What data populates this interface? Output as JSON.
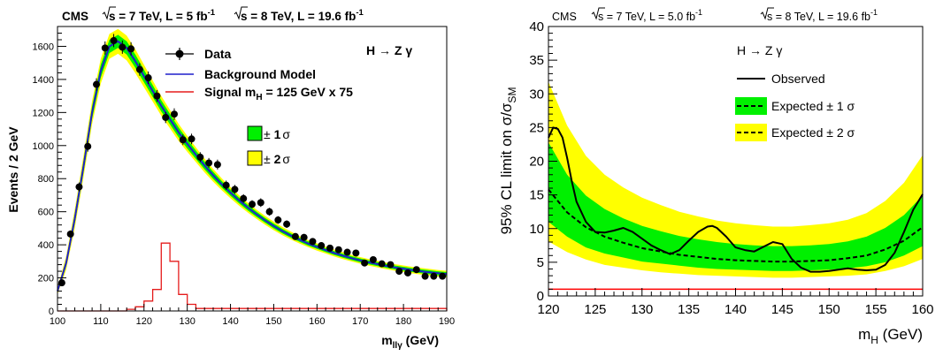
{
  "chart_data": [
    {
      "type": "scatter",
      "header": {
        "experiment": "CMS",
        "run1": {
          "sqrts": "s",
          "energy": " = 7 TeV, L = 5 fb",
          "exp": "-1"
        },
        "run2": {
          "sqrts": "s",
          "energy": " = 8 TeV, L = 19.6 fb",
          "exp": "-1"
        }
      },
      "channel": "H → Z γ",
      "xlabel": {
        "main": "m",
        "sub": "llγ",
        "unit": " (GeV)"
      },
      "ylabel": "Events / 2 GeV",
      "xlim": [
        100,
        190
      ],
      "ylim": [
        0,
        1720
      ],
      "x_ticks": [
        100,
        110,
        120,
        130,
        140,
        150,
        160,
        170,
        180,
        190
      ],
      "y_ticks": [
        0,
        200,
        400,
        600,
        800,
        1000,
        1200,
        1400,
        1600
      ],
      "legend": {
        "placement": "top-right",
        "data": "Data",
        "background": "Background Model",
        "signal": {
          "main": "Signal m",
          "sub": "H",
          "rest": " = 125 GeV x 75"
        },
        "band1": {
          "pm": "± ",
          "n": "1",
          "sym": "σ"
        },
        "band2": {
          "pm": "± ",
          "n": "2",
          "sym": "σ"
        }
      },
      "colors": {
        "data": "#000000",
        "background": "#1f1fcc",
        "signal": "#e51c1c",
        "band1": "#00f000",
        "band2": "#ffff00"
      },
      "data_points": {
        "x": [
          101,
          103,
          105,
          107,
          109,
          111,
          113,
          115,
          117,
          119,
          121,
          123,
          125,
          127,
          129,
          131,
          133,
          135,
          137,
          139,
          141,
          143,
          145,
          147,
          149,
          151,
          153,
          155,
          157,
          159,
          161,
          163,
          165,
          167,
          169,
          171,
          173,
          175,
          177,
          179,
          181,
          183,
          185,
          187,
          189
        ],
        "y": [
          170,
          465,
          750,
          995,
          1370,
          1590,
          1635,
          1595,
          1585,
          1460,
          1410,
          1300,
          1170,
          1190,
          1035,
          1040,
          930,
          895,
          885,
          760,
          735,
          680,
          645,
          655,
          600,
          550,
          525,
          450,
          445,
          420,
          395,
          380,
          370,
          355,
          350,
          290,
          310,
          285,
          280,
          240,
          230,
          250,
          210,
          210,
          210
        ],
        "err": [
          13,
          22,
          27,
          32,
          37,
          40,
          40,
          40,
          40,
          38,
          38,
          36,
          34,
          35,
          32,
          32,
          30,
          30,
          30,
          28,
          27,
          26,
          25,
          26,
          24,
          23,
          23,
          21,
          21,
          20,
          20,
          19,
          19,
          19,
          19,
          17,
          18,
          17,
          17,
          15,
          15,
          16,
          14,
          14,
          14
        ]
      },
      "background_model": {
        "x": [
          100,
          102,
          104,
          106,
          108,
          110,
          112,
          114,
          116,
          118,
          120,
          122,
          124,
          126,
          128,
          130,
          132,
          134,
          136,
          138,
          140,
          142,
          144,
          146,
          148,
          150,
          152,
          154,
          156,
          158,
          160,
          162,
          164,
          166,
          168,
          170,
          172,
          174,
          176,
          178,
          180,
          182,
          184,
          186,
          188,
          190
        ],
        "y": [
          120,
          290,
          560,
          870,
          1200,
          1450,
          1600,
          1630,
          1590,
          1510,
          1420,
          1330,
          1240,
          1160,
          1080,
          1010,
          945,
          880,
          820,
          765,
          715,
          668,
          625,
          585,
          548,
          514,
          483,
          455,
          430,
          407,
          387,
          368,
          350,
          334,
          319,
          306,
          294,
          283,
          272,
          263,
          255,
          247,
          240,
          234,
          228,
          223
        ],
        "band1": [
          10,
          20,
          30,
          35,
          38,
          40,
          40,
          40,
          40,
          40,
          38,
          36,
          34,
          32,
          30,
          28,
          26,
          24,
          22,
          20,
          19,
          18,
          17,
          16,
          15,
          15,
          14,
          14,
          13,
          13,
          12,
          12,
          12,
          12,
          12,
          12,
          12,
          12,
          12,
          12,
          12,
          12,
          12,
          12,
          12,
          12
        ],
        "band2": [
          20,
          40,
          55,
          65,
          70,
          75,
          75,
          75,
          75,
          72,
          68,
          64,
          60,
          56,
          52,
          48,
          45,
          42,
          39,
          36,
          34,
          32,
          30,
          28,
          27,
          26,
          25,
          24,
          23,
          22,
          22,
          21,
          21,
          21,
          20,
          20,
          20,
          20,
          20,
          20,
          20,
          20,
          20,
          20,
          20,
          20
        ]
      },
      "signal": {
        "bin_edges": [
          100,
          116,
          118,
          120,
          122,
          124,
          126,
          128,
          130,
          132,
          190
        ],
        "y": [
          0,
          10,
          25,
          60,
          130,
          410,
          300,
          100,
          40,
          15,
          0
        ]
      }
    },
    {
      "type": "line",
      "header": {
        "experiment": "CMS",
        "run1": {
          "sqrts": "s",
          "energy": " = 7 TeV, L = 5.0 fb",
          "exp": "-1"
        },
        "run2": {
          "sqrts": "s",
          "energy": " = 8 TeV, L = 19.6 fb",
          "exp": "-1"
        }
      },
      "channel": "H → Z γ",
      "xlabel": {
        "main": "m",
        "sub": "H",
        "unit": " (GeV)"
      },
      "ylabel": {
        "main": "95% CL limit on σ/σ",
        "sub": "SM"
      },
      "xlim": [
        120,
        160
      ],
      "ylim": [
        0,
        40
      ],
      "x_ticks": [
        120,
        125,
        130,
        135,
        140,
        145,
        150,
        155,
        160
      ],
      "y_ticks": [
        0,
        5,
        10,
        15,
        20,
        25,
        30,
        35,
        40
      ],
      "legend": {
        "placement": "top-center",
        "observed": "Observed",
        "expected1": "Expected ± 1 σ",
        "expected2": "Expected ± 2 σ"
      },
      "colors": {
        "observed": "#000000",
        "band1": "#00f000",
        "band2": "#ffff00",
        "unity": "#ff0000"
      },
      "expected": {
        "x": [
          120,
          122,
          124,
          126,
          128,
          130,
          132,
          134,
          136,
          138,
          140,
          142,
          144,
          146,
          148,
          150,
          152,
          154,
          156,
          158,
          160
        ],
        "median": [
          15.8,
          12.4,
          10.2,
          8.8,
          7.9,
          7.1,
          6.6,
          6.1,
          5.8,
          5.5,
          5.3,
          5.2,
          5.1,
          5.1,
          5.2,
          5.3,
          5.6,
          6.0,
          6.9,
          8.2,
          10.2
        ],
        "one_sigma_low": [
          11.0,
          8.8,
          7.2,
          6.3,
          5.7,
          5.1,
          4.8,
          4.5,
          4.2,
          4.0,
          3.9,
          3.8,
          3.7,
          3.7,
          3.8,
          3.9,
          4.1,
          4.4,
          5.0,
          6.0,
          7.4
        ],
        "one_sigma_high": [
          22.8,
          18.0,
          14.9,
          12.9,
          11.5,
          10.4,
          9.6,
          8.9,
          8.4,
          8.0,
          7.7,
          7.5,
          7.4,
          7.4,
          7.5,
          7.7,
          8.1,
          8.8,
          10.1,
          12.0,
          14.9
        ],
        "two_sigma_low": [
          8.1,
          6.5,
          5.4,
          4.6,
          4.2,
          3.8,
          3.5,
          3.3,
          3.1,
          3.0,
          2.9,
          2.8,
          2.7,
          2.7,
          2.8,
          2.9,
          3.0,
          3.2,
          3.7,
          4.4,
          5.5
        ],
        "two_sigma_high": [
          31.8,
          25.3,
          20.8,
          18.0,
          16.1,
          14.6,
          13.5,
          12.5,
          11.8,
          11.2,
          10.8,
          10.5,
          10.3,
          10.3,
          10.5,
          10.8,
          11.3,
          12.3,
          14.1,
          16.8,
          20.9
        ]
      },
      "observed": {
        "x": [
          120,
          120.5,
          121,
          121.5,
          122,
          122.5,
          123,
          124,
          125,
          126,
          127,
          128,
          129,
          130,
          131,
          132,
          133,
          134,
          135,
          136,
          137,
          137.5,
          138,
          139,
          140,
          141,
          142,
          143,
          144,
          145,
          146,
          147,
          148,
          149,
          150,
          151,
          152,
          153,
          154,
          155,
          156,
          157,
          158,
          159,
          160
        ],
        "y": [
          23.5,
          25,
          24.8,
          23.5,
          20.5,
          17,
          14,
          11,
          9.5,
          9.4,
          9.7,
          10.1,
          9.5,
          8.5,
          7.5,
          6.8,
          6.2,
          6.8,
          8.2,
          9.5,
          10.3,
          10.4,
          10.1,
          8.8,
          7.2,
          6.8,
          6.6,
          7.3,
          8,
          7.7,
          5.5,
          4.2,
          3.6,
          3.6,
          3.7,
          3.9,
          4.1,
          3.9,
          3.8,
          3.9,
          4.6,
          6.4,
          9.5,
          12.8,
          15.1
        ]
      }
    }
  ]
}
